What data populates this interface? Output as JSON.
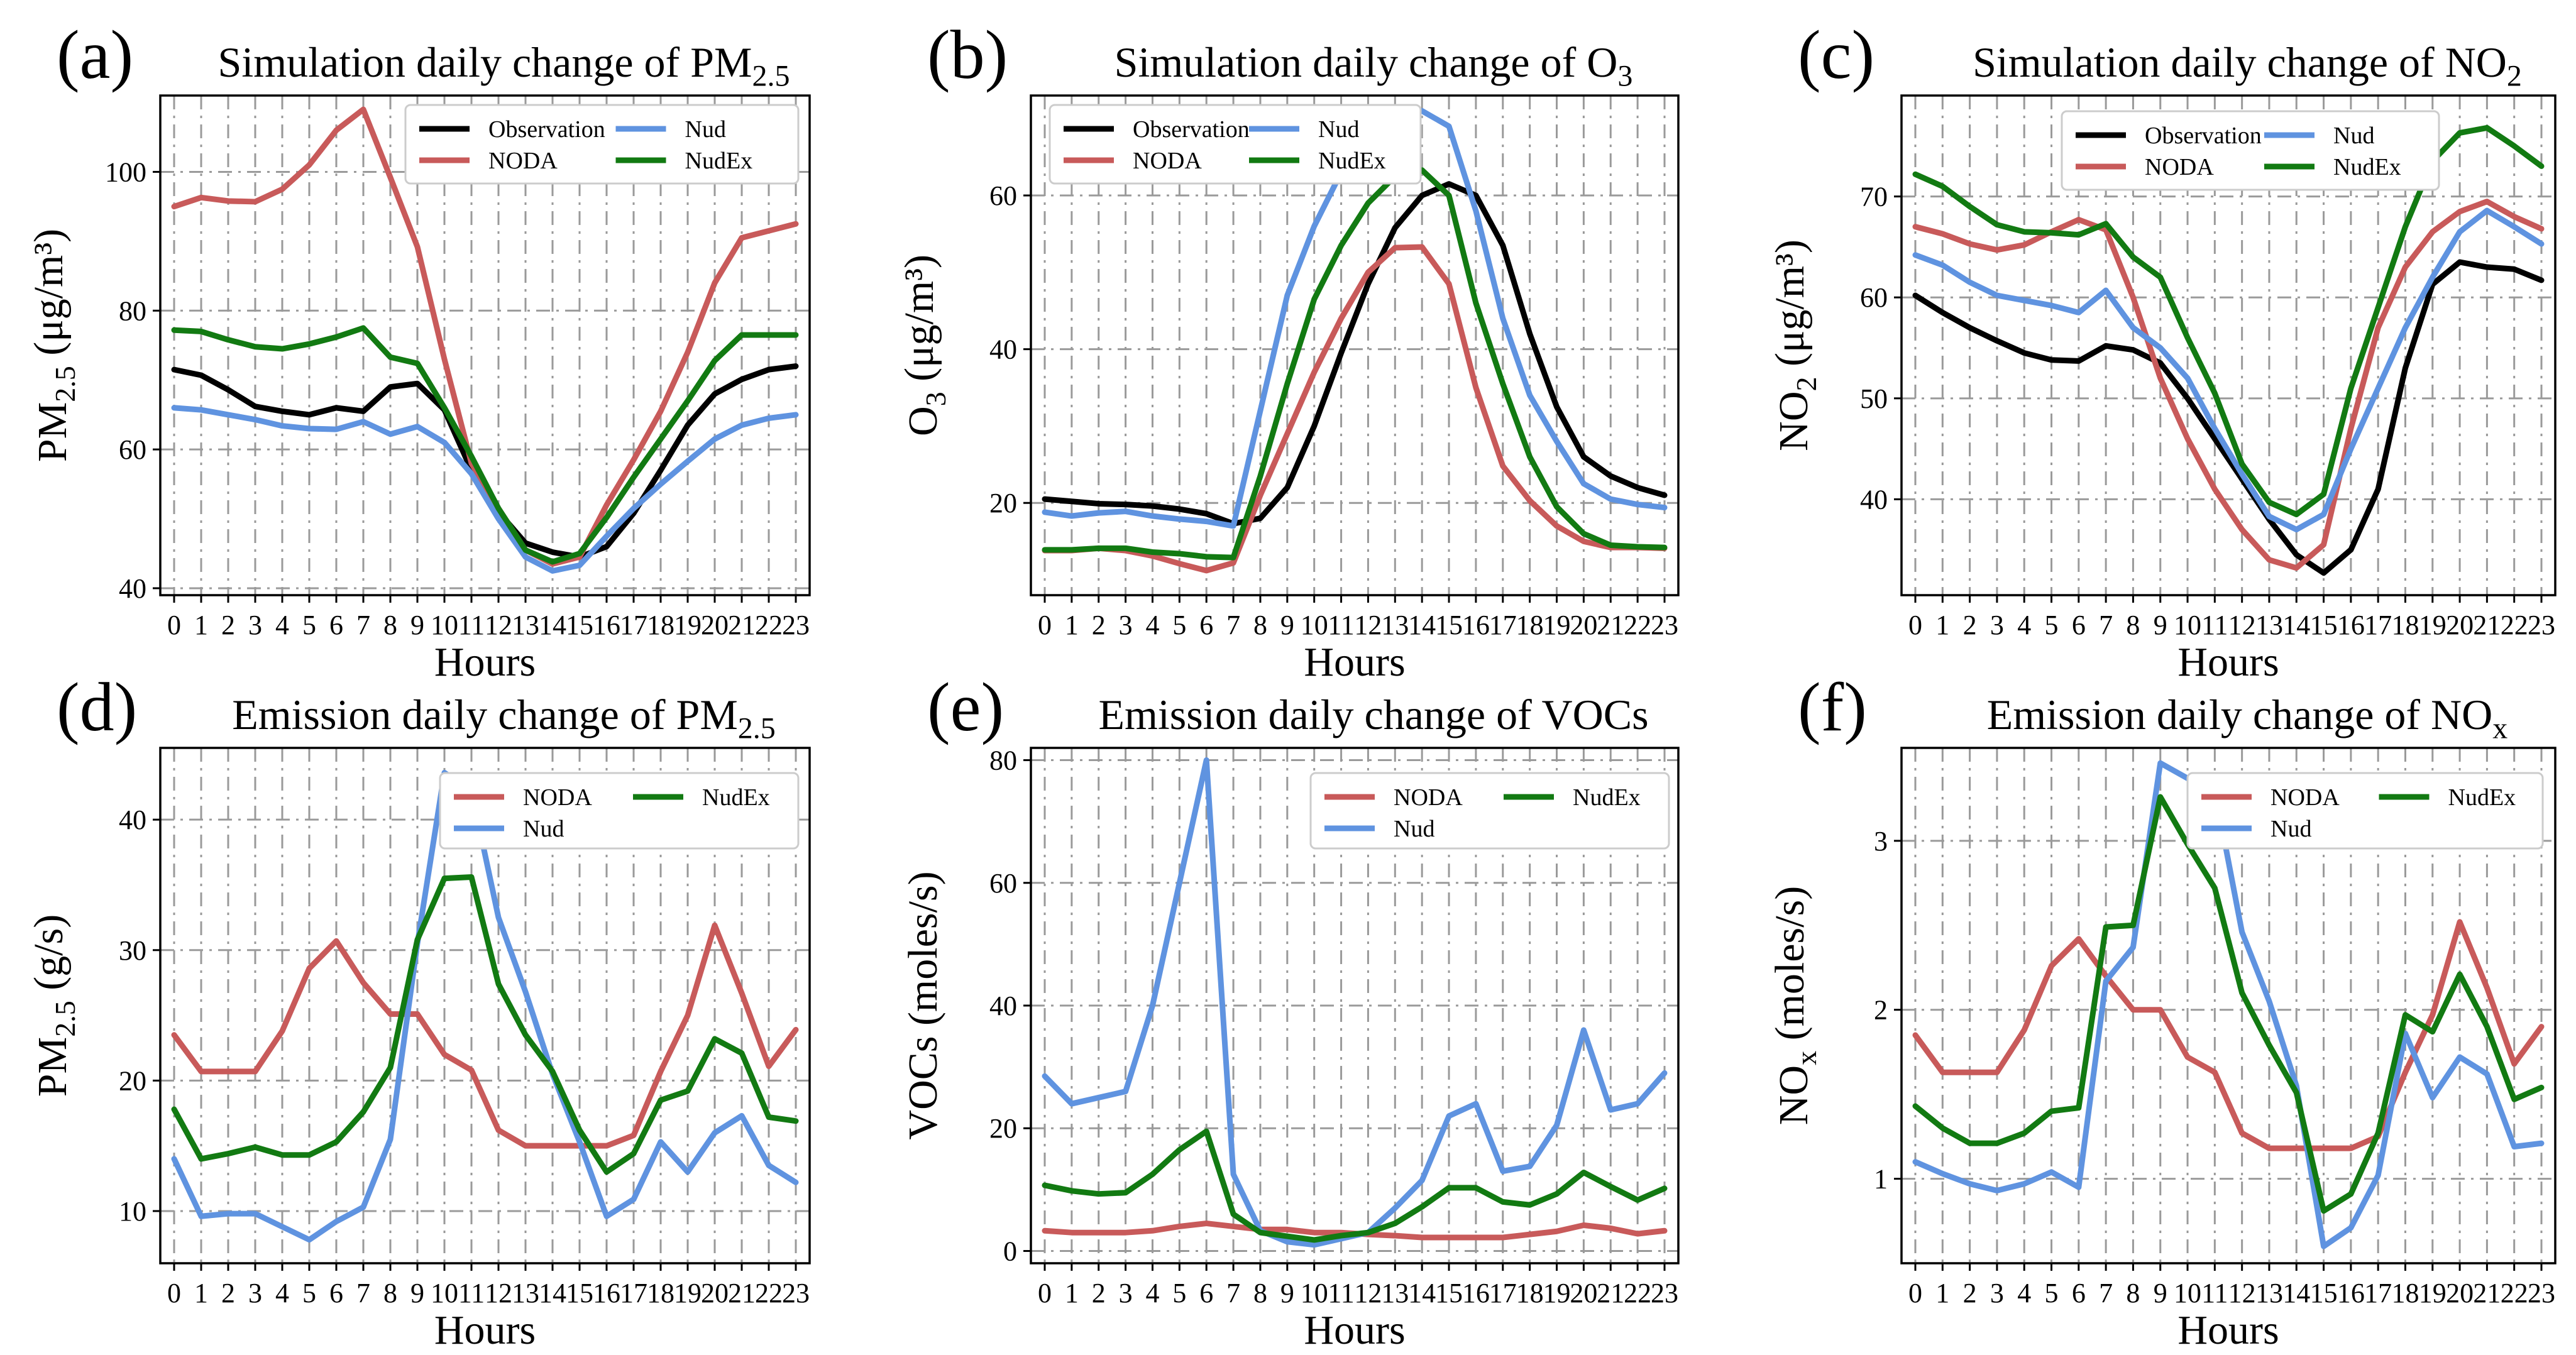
{
  "chart_data": [
    {
      "type": "line",
      "panel_label": "(a)",
      "title": "Simulation daily change of PM",
      "title_sub": "2.5",
      "xlabel": "Hours",
      "ylabel": "PM",
      "ylabel_sub": "2.5",
      "ylabel_units": "(μg/m³)",
      "categories": [
        "0",
        "1",
        "2",
        "3",
        "4",
        "5",
        "6",
        "7",
        "8",
        "9",
        "10",
        "11",
        "12",
        "13",
        "14",
        "15",
        "16",
        "17",
        "18",
        "19",
        "20",
        "21",
        "22",
        "23"
      ],
      "ylim": [
        39,
        111
      ],
      "yticks": [
        40,
        60,
        80,
        100
      ],
      "legend_location": "top-right",
      "legend_columns": 2,
      "series": [
        {
          "name": "Observation",
          "color": "#000000",
          "values": [
            71.5,
            70.7,
            68.6,
            66.2,
            65.5,
            65,
            66,
            65.5,
            69,
            69.5,
            65.7,
            57,
            51,
            46.5,
            45.2,
            44.5,
            46,
            50.8,
            57,
            63.5,
            68,
            70.1,
            71.5,
            72
          ]
        },
        {
          "name": "NODA",
          "color": "#c85a5a",
          "values": [
            95,
            96.3,
            95.8,
            95.7,
            97.5,
            101,
            106,
            109,
            99.2,
            89.2,
            73,
            58,
            51.5,
            45.5,
            43.5,
            44.5,
            52,
            58.5,
            65.5,
            74,
            84,
            90.5,
            91.5,
            92.5
          ]
        },
        {
          "name": "Nud",
          "color": "#5f93e0",
          "values": [
            66,
            65.7,
            65,
            64.3,
            63.4,
            63,
            62.9,
            64,
            62.2,
            63.3,
            61,
            56.5,
            50,
            44.5,
            42.5,
            43.3,
            47.5,
            51.5,
            55,
            58.3,
            61.5,
            63.5,
            64.5,
            65
          ]
        },
        {
          "name": "NudEx",
          "color": "#127a12",
          "values": [
            77.2,
            77,
            75.8,
            74.8,
            74.5,
            75.2,
            76.2,
            77.5,
            73.3,
            72.4,
            66,
            59,
            51.5,
            45.5,
            43.8,
            45,
            50.2,
            56,
            61.5,
            67,
            72.8,
            76.5,
            76.5,
            76.5
          ]
        }
      ]
    },
    {
      "type": "line",
      "panel_label": "(b)",
      "title": "Simulation daily change of O",
      "title_sub": "3",
      "xlabel": "Hours",
      "ylabel": "O",
      "ylabel_sub": "3",
      "ylabel_units": "(μg/m³)",
      "categories": [
        "0",
        "1",
        "2",
        "3",
        "4",
        "5",
        "6",
        "7",
        "8",
        "9",
        "10",
        "11",
        "12",
        "13",
        "14",
        "15",
        "16",
        "17",
        "18",
        "19",
        "20",
        "21",
        "22",
        "23"
      ],
      "ylim": [
        8,
        73
      ],
      "yticks": [
        20,
        40,
        60
      ],
      "legend_location": "top-left",
      "legend_columns": 2,
      "series": [
        {
          "name": "Observation",
          "color": "#000000",
          "values": [
            20.5,
            20.2,
            19.9,
            19.8,
            19.6,
            19.2,
            18.6,
            17.3,
            18,
            22,
            30,
            39.5,
            48.5,
            55.8,
            60,
            61.5,
            60,
            53.5,
            42,
            32.5,
            26,
            23.5,
            22,
            21
          ]
        },
        {
          "name": "NODA",
          "color": "#c85a5a",
          "values": [
            13.8,
            13.8,
            14.1,
            13.8,
            13.1,
            12.1,
            11.2,
            12.2,
            21,
            29,
            37,
            44,
            50,
            53.2,
            53.3,
            48.5,
            35,
            24.8,
            20.3,
            17,
            15,
            14.2,
            14.2,
            14.1
          ]
        },
        {
          "name": "Nud",
          "color": "#5f93e0",
          "values": [
            18.8,
            18.3,
            18.7,
            18.9,
            18.3,
            17.9,
            17.6,
            17,
            32,
            47,
            56,
            63,
            68,
            71,
            71,
            69,
            58,
            44,
            34,
            28,
            22.5,
            20.5,
            19.8,
            19.4
          ]
        },
        {
          "name": "NudEx",
          "color": "#127a12",
          "values": [
            13.9,
            13.9,
            14.1,
            14.1,
            13.6,
            13.4,
            13,
            12.9,
            23.5,
            35.5,
            46.5,
            53.5,
            59,
            62.5,
            63.3,
            60,
            46,
            35.5,
            26,
            19.5,
            16,
            14.5,
            14.3,
            14.2
          ]
        }
      ]
    },
    {
      "type": "line",
      "panel_label": "(c)",
      "title": "Simulation daily change of NO",
      "title_sub": "2",
      "xlabel": "Hours",
      "ylabel": "NO",
      "ylabel_sub": "2",
      "ylabel_units": "(μg/m³)",
      "categories": [
        "0",
        "1",
        "2",
        "3",
        "4",
        "5",
        "6",
        "7",
        "8",
        "9",
        "10",
        "11",
        "12",
        "13",
        "14",
        "15",
        "16",
        "17",
        "18",
        "19",
        "20",
        "21",
        "22",
        "23"
      ],
      "ylim": [
        30.5,
        80
      ],
      "yticks": [
        40,
        50,
        60,
        70
      ],
      "legend_location": "top-center",
      "legend_columns": 2,
      "series": [
        {
          "name": "Observation",
          "color": "#000000",
          "values": [
            60.2,
            58.5,
            57,
            55.7,
            54.5,
            53.8,
            53.7,
            55.2,
            54.8,
            53.5,
            50,
            46,
            42,
            38,
            34.5,
            32.7,
            35,
            41,
            53,
            61.3,
            63.5,
            63,
            62.8,
            61.7
          ]
        },
        {
          "name": "NODA",
          "color": "#c85a5a",
          "values": [
            67,
            66.3,
            65.3,
            64.7,
            65.2,
            66.5,
            67.7,
            66.7,
            60,
            52,
            46,
            41,
            37,
            34,
            33.2,
            35.5,
            47,
            57,
            63,
            66.5,
            68.5,
            69.5,
            68,
            66.8
          ]
        },
        {
          "name": "Nud",
          "color": "#5f93e0",
          "values": [
            64.2,
            63.2,
            61.5,
            60.2,
            59.7,
            59.2,
            58.5,
            60.7,
            57,
            55,
            52,
            47,
            42.5,
            38.3,
            37,
            38.5,
            45,
            51,
            57,
            62,
            66.5,
            68.6,
            67,
            65.3
          ]
        },
        {
          "name": "NudEx",
          "color": "#127a12",
          "values": [
            72.2,
            71,
            69,
            67.2,
            66.5,
            66.4,
            66.2,
            67.3,
            64,
            62,
            56,
            50.5,
            43.5,
            39.7,
            38.5,
            40.5,
            51,
            59,
            67,
            73.5,
            76.3,
            76.8,
            75,
            73
          ]
        }
      ]
    },
    {
      "type": "line",
      "panel_label": "(d)",
      "title": "Emission daily change of PM",
      "title_sub": "2.5",
      "xlabel": "Hours",
      "ylabel": "PM",
      "ylabel_sub": "2.5",
      "ylabel_units": "(g/s)",
      "categories": [
        "0",
        "1",
        "2",
        "3",
        "4",
        "5",
        "6",
        "7",
        "8",
        "9",
        "10",
        "11",
        "12",
        "13",
        "14",
        "15",
        "16",
        "17",
        "18",
        "19",
        "20",
        "21",
        "22",
        "23"
      ],
      "ylim": [
        6,
        45.5
      ],
      "yticks": [
        10,
        20,
        30,
        40
      ],
      "legend_location": "top-right",
      "legend_columns": 2,
      "series": [
        {
          "name": "NODA",
          "color": "#c85a5a",
          "values": [
            23.5,
            20.7,
            20.7,
            20.7,
            23.8,
            28.6,
            30.7,
            27.5,
            25.1,
            25.1,
            22,
            20.8,
            16.2,
            15,
            15,
            15,
            15,
            15.8,
            20.7,
            25,
            31.9,
            26.7,
            21.1,
            23.9
          ]
        },
        {
          "name": "Nud",
          "color": "#5f93e0",
          "values": [
            14,
            9.6,
            9.8,
            9.8,
            8.8,
            7.8,
            9.2,
            10.3,
            15.5,
            30.5,
            43.6,
            42.2,
            32.5,
            26.8,
            20.5,
            15.3,
            9.6,
            10.9,
            15.3,
            13,
            16,
            17.3,
            13.5,
            12.2
          ]
        },
        {
          "name": "NudEx",
          "color": "#127a12",
          "values": [
            17.8,
            14,
            14.4,
            14.9,
            14.3,
            14.3,
            15.3,
            17.6,
            21,
            30.8,
            35.5,
            35.6,
            27.4,
            23.5,
            20.7,
            16.2,
            13,
            14.4,
            18.5,
            19.2,
            23.2,
            22.1,
            17.2,
            16.9
          ]
        }
      ]
    },
    {
      "type": "line",
      "panel_label": "(e)",
      "title": "Emission daily change of VOCs",
      "title_sub": "",
      "xlabel": "Hours",
      "ylabel": "VOCs",
      "ylabel_sub": "",
      "ylabel_units": "(moles/s)",
      "categories": [
        "0",
        "1",
        "2",
        "3",
        "4",
        "5",
        "6",
        "7",
        "8",
        "9",
        "10",
        "11",
        "12",
        "13",
        "14",
        "15",
        "16",
        "17",
        "18",
        "19",
        "20",
        "21",
        "22",
        "23"
      ],
      "ylim": [
        -2,
        82
      ],
      "yticks": [
        0,
        20,
        40,
        60,
        80
      ],
      "legend_location": "top-right",
      "legend_columns": 2,
      "series": [
        {
          "name": "NODA",
          "color": "#c85a5a",
          "values": [
            3.3,
            3,
            3,
            3,
            3.3,
            4,
            4.5,
            4,
            3.5,
            3.5,
            3,
            3,
            2.7,
            2.5,
            2.2,
            2.2,
            2.2,
            2.2,
            2.7,
            3.2,
            4.2,
            3.7,
            2.8,
            3.3
          ]
        },
        {
          "name": "Nud",
          "color": "#5f93e0",
          "values": [
            28.5,
            24,
            25,
            26,
            40,
            60,
            80,
            12.5,
            3.3,
            1.5,
            1,
            2,
            3,
            7,
            11.5,
            22,
            24,
            13,
            13.8,
            20.5,
            36,
            23,
            24,
            29
          ]
        },
        {
          "name": "NudEx",
          "color": "#127a12",
          "values": [
            10.7,
            9.8,
            9.3,
            9.5,
            12.5,
            16.5,
            19.5,
            6,
            3,
            2.4,
            1.8,
            2.5,
            3,
            4.5,
            7.2,
            10.3,
            10.3,
            8,
            7.5,
            9.3,
            12.8,
            10.5,
            8.3,
            10.2
          ]
        }
      ]
    },
    {
      "type": "line",
      "panel_label": "(f)",
      "title": "Emission daily change of NO",
      "title_sub": "x",
      "xlabel": "Hours",
      "ylabel": "NO",
      "ylabel_sub": "x",
      "ylabel_units": "(moles/s)",
      "categories": [
        "0",
        "1",
        "2",
        "3",
        "4",
        "5",
        "6",
        "7",
        "8",
        "9",
        "10",
        "11",
        "12",
        "13",
        "14",
        "15",
        "16",
        "17",
        "18",
        "19",
        "20",
        "21",
        "22",
        "23"
      ],
      "ylim": [
        0.5,
        3.55
      ],
      "yticks": [
        1,
        2,
        3
      ],
      "legend_location": "top-right",
      "legend_columns": 2,
      "series": [
        {
          "name": "NODA",
          "color": "#c85a5a",
          "values": [
            1.85,
            1.63,
            1.63,
            1.63,
            1.88,
            2.26,
            2.42,
            2.2,
            2,
            2,
            1.72,
            1.63,
            1.27,
            1.18,
            1.18,
            1.18,
            1.18,
            1.25,
            1.63,
            1.97,
            2.52,
            2.13,
            1.68,
            1.9
          ]
        },
        {
          "name": "Nud",
          "color": "#5f93e0",
          "values": [
            1.1,
            1.03,
            0.97,
            0.93,
            0.97,
            1.04,
            0.95,
            2.17,
            2.37,
            3.46,
            3.37,
            3.3,
            2.46,
            2.05,
            1.55,
            0.6,
            0.71,
            1.02,
            1.86,
            1.48,
            1.72,
            1.62,
            1.19,
            1.21
          ]
        },
        {
          "name": "NudEx",
          "color": "#127a12",
          "values": [
            1.43,
            1.3,
            1.21,
            1.21,
            1.27,
            1.4,
            1.42,
            2.49,
            2.5,
            3.26,
            2.98,
            2.72,
            2.1,
            1.79,
            1.51,
            0.81,
            0.91,
            1.27,
            1.97,
            1.87,
            2.21,
            1.9,
            1.47,
            1.54
          ]
        }
      ]
    }
  ]
}
